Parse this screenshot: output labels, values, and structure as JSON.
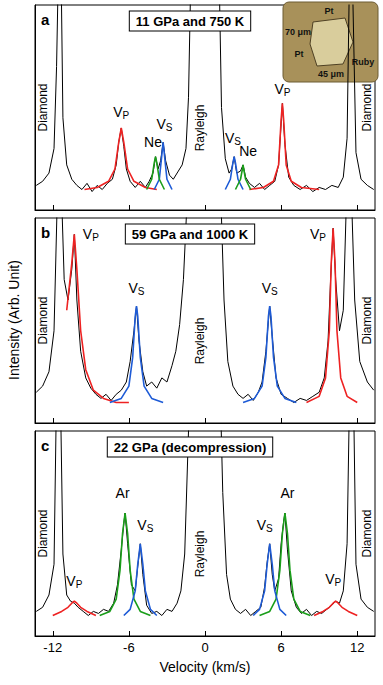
{
  "chart_data": {
    "type": "line",
    "xlabel": "Velocity (km/s)",
    "ylabel": "Intensity (Arb. Unit)",
    "xlim": [
      -13.4,
      13.4
    ],
    "xticks": [
      -12,
      -6,
      0,
      6,
      12
    ],
    "ylim": [
      0,
      100
    ],
    "inset": {
      "labels": [
        "Pt",
        "70 μm",
        "Pt",
        "45 μm",
        "Ruby"
      ]
    },
    "panels": [
      {
        "label": "a",
        "title": "11 GPa and 750 K",
        "tick_labels": false,
        "series": [
          {
            "color": "#000000",
            "x": [
              -13.3,
              -12.8,
              -12.3,
              -11.9,
              -11.7,
              -11.55,
              -11.35,
              -11.2,
              -10.9,
              -10.5,
              -10.1,
              -9.7,
              -9.3,
              -8.9,
              -8.5,
              -8.1,
              -7.7,
              -7.3,
              -7.0,
              -6.8,
              -6.6,
              -6.4,
              -6.2,
              -5.9,
              -5.5,
              -5.1,
              -4.7,
              -4.4,
              -4.1,
              -3.9,
              -3.7,
              -3.5,
              -3.3,
              -3.1,
              -2.8,
              -2.5,
              -2.1,
              -1.8,
              -1.5,
              -1.3,
              -1.1,
              0,
              1.1,
              1.3,
              1.6,
              1.9,
              2.1,
              2.3,
              2.5,
              2.8,
              3.0,
              3.2,
              3.5,
              3.9,
              4.3,
              4.7,
              5.1,
              5.5,
              5.8,
              6.0,
              6.1,
              6.3,
              6.6,
              7.0,
              7.5,
              8.0,
              8.5,
              9.0,
              9.5,
              10.0,
              10.5,
              10.9,
              11.2,
              11.4,
              11.6,
              11.9,
              12.3,
              12.8,
              13.3
            ],
            "values": [
              12,
              14,
              18,
              30,
              70,
              120,
              120,
              45,
              22,
              15,
              12,
              10,
              13,
              9,
              12,
              10,
              13,
              15,
              22,
              33,
              40,
              31,
              20,
              14,
              11,
              14,
              11,
              14,
              18,
              26,
              20,
              24,
              33,
              24,
              17,
              15,
              19,
              22,
              30,
              55,
              120,
              null,
              120,
              50,
              25,
              18,
              20,
              26,
              18,
              19,
              22,
              16,
              13,
              11,
              13,
              10,
              12,
              14,
              22,
              42,
              52,
              32,
              16,
              12,
              10,
              12,
              9,
              11,
              10,
              12,
              11,
              16,
              35,
              120,
              120,
              28,
              15,
              12,
              10
            ]
          },
          {
            "color": "#ee2222",
            "x": [
              -9.5,
              -8.5,
              -7.6,
              -7.1,
              -6.8,
              -6.6,
              -6.4,
              -6.1,
              -5.6,
              -4.7,
              -3.8,
              0,
              3.5,
              4.6,
              5.4,
              5.8,
              6.0,
              6.1,
              6.2,
              6.4,
              6.8,
              7.6,
              9.0
            ],
            "values": [
              10,
              11,
              14,
              20,
              33,
              40,
              33,
              20,
              14,
              11,
              10,
              null,
              10,
              11,
              14,
              22,
              44,
              52,
              44,
              22,
              14,
              11,
              10
            ]
          },
          {
            "color": "#1e5bd6",
            "x": [
              -4.0,
              -3.6,
              -3.4,
              -3.3,
              -3.2,
              -3.0,
              -2.6,
              0,
              1.6,
              2.0,
              2.2,
              2.3,
              2.4,
              2.6,
              3.0
            ],
            "values": [
              10,
              15,
              27,
              33,
              27,
              15,
              10,
              null,
              10,
              15,
              23,
              26,
              23,
              15,
              10
            ]
          },
          {
            "color": "#1a9e1a",
            "x": [
              -4.6,
              -4.2,
              -4.0,
              -3.9,
              -3.8,
              -3.6,
              -3.2,
              0,
              2.4,
              2.8,
              2.95,
              3.0,
              3.05,
              3.2,
              3.6
            ],
            "values": [
              10,
              15,
              23,
              26,
              23,
              15,
              10,
              null,
              10,
              15,
              20,
              22,
              20,
              15,
              10
            ]
          }
        ],
        "peak_labels": [
          {
            "text": "VP",
            "x": -6.6,
            "y": 48
          },
          {
            "text": "Ne",
            "x": -4.1,
            "y": 33
          },
          {
            "text": "VS",
            "x": -3.2,
            "y": 42
          },
          {
            "text": "VS",
            "x": 2.2,
            "y": 35
          },
          {
            "text": "Ne",
            "x": 3.4,
            "y": 29
          },
          {
            "text": "VP",
            "x": 6.1,
            "y": 59
          }
        ],
        "vertical_labels": [
          {
            "text": "Diamond",
            "x": -12.8,
            "y": 50
          },
          {
            "text": "Rayleigh",
            "x": -0.4,
            "y": 40
          },
          {
            "text": "Diamond",
            "x": 12.8,
            "y": 50
          }
        ]
      },
      {
        "label": "b",
        "title": "59 GPa and 1000 K",
        "tick_labels": false,
        "series": [
          {
            "color": "#000000",
            "x": [
              -13.3,
              -12.8,
              -12.3,
              -11.9,
              -11.6,
              -11.35,
              -11.1,
              -10.8,
              -10.5,
              -10.3,
              -10.1,
              -9.8,
              -9.4,
              -9.0,
              -8.6,
              -8.2,
              -7.8,
              -7.4,
              -7.0,
              -6.6,
              -6.2,
              -5.9,
              -5.6,
              -5.4,
              -5.2,
              -4.9,
              -4.6,
              -4.2,
              -3.8,
              -3.4,
              -3.0,
              -2.6,
              -2.3,
              -2.0,
              -1.7,
              -1.4,
              -1.2,
              0,
              1.2,
              1.5,
              1.8,
              2.2,
              2.6,
              3.0,
              3.4,
              3.8,
              4.2,
              4.5,
              4.8,
              5.0,
              5.1,
              5.3,
              5.6,
              6.0,
              6.5,
              7.0,
              7.5,
              8.0,
              8.5,
              9.0,
              9.4,
              9.7,
              9.9,
              10.1,
              10.3,
              10.6,
              10.9,
              11.2,
              11.5,
              11.8,
              12.2,
              12.8,
              13.3
            ],
            "values": [
              15,
              18,
              25,
              45,
              120,
              120,
              70,
              60,
              75,
              92,
              60,
              35,
              22,
              17,
              14,
              12,
              14,
              11,
              14,
              16,
              20,
              30,
              45,
              57,
              40,
              25,
              18,
              20,
              17,
              22,
              20,
              28,
              35,
              48,
              70,
              110,
              120,
              null,
              120,
              60,
              30,
              18,
              14,
              12,
              14,
              11,
              15,
              20,
              35,
              50,
              57,
              42,
              22,
              14,
              12,
              10,
              12,
              11,
              13,
              15,
              22,
              40,
              70,
              95,
              70,
              45,
              55,
              120,
              120,
              60,
              30,
              20,
              16
            ]
          },
          {
            "color": "#ee2222",
            "x": [
              -10.9,
              -10.5,
              -10.3,
              -10.1,
              -9.8,
              -9.4,
              -8.8,
              -8.0,
              -7.0,
              -6.0,
              0,
              8.0,
              9.0,
              9.5,
              9.8,
              9.95,
              10.1,
              10.25,
              10.4,
              10.7,
              11.2,
              12.0
            ],
            "values": [
              55,
              78,
              92,
              75,
              45,
              26,
              16,
              12,
              10,
              10,
              null,
              10,
              13,
              22,
              45,
              78,
              95,
              78,
              45,
              22,
              13,
              10
            ]
          },
          {
            "color": "#1e5bd6",
            "x": [
              -7.5,
              -6.6,
              -6.0,
              -5.7,
              -5.5,
              -5.4,
              -5.3,
              -5.1,
              -4.8,
              -4.2,
              -3.3,
              0,
              3.0,
              3.9,
              4.5,
              4.8,
              5.0,
              5.1,
              5.2,
              5.4,
              5.7,
              6.3,
              7.2
            ],
            "values": [
              10,
              12,
              18,
              32,
              52,
              57,
              52,
              32,
              18,
              12,
              10,
              null,
              10,
              12,
              18,
              32,
              52,
              57,
              52,
              32,
              18,
              12,
              10
            ]
          }
        ],
        "peak_labels": [
          {
            "text": "VP",
            "x": -9.0,
            "y": 92
          },
          {
            "text": "VS",
            "x": -5.4,
            "y": 66
          },
          {
            "text": "VS",
            "x": 5.1,
            "y": 66
          },
          {
            "text": "VP",
            "x": 8.9,
            "y": 92
          }
        ],
        "vertical_labels": [
          {
            "text": "Diamond",
            "x": -12.8,
            "y": 50
          },
          {
            "text": "Rayleigh",
            "x": -0.4,
            "y": 40
          },
          {
            "text": "Diamond",
            "x": 12.8,
            "y": 50
          }
        ]
      },
      {
        "label": "c",
        "title": "22 GPa (decompression)",
        "tick_labels": "x",
        "series": [
          {
            "color": "#000000",
            "x": [
              -13.3,
              -12.8,
              -12.3,
              -11.9,
              -11.7,
              -11.4,
              -11.2,
              -10.9,
              -10.6,
              -10.3,
              -10.0,
              -9.6,
              -9.2,
              -8.8,
              -8.4,
              -8.0,
              -7.6,
              -7.2,
              -6.9,
              -6.6,
              -6.4,
              -6.3,
              -6.1,
              -5.8,
              -5.5,
              -5.3,
              -5.1,
              -4.9,
              -4.6,
              -4.2,
              -3.8,
              -3.4,
              -3.0,
              -2.6,
              -2.2,
              -1.9,
              -1.6,
              -1.4,
              -1.2,
              0,
              1.2,
              1.4,
              1.7,
              2.0,
              2.4,
              2.8,
              3.2,
              3.6,
              4.0,
              4.4,
              4.7,
              4.9,
              5.1,
              5.3,
              5.5,
              5.8,
              6.0,
              6.2,
              6.3,
              6.5,
              6.8,
              7.2,
              7.6,
              8.0,
              8.4,
              8.8,
              9.2,
              9.6,
              10.0,
              10.3,
              10.6,
              10.9,
              11.2,
              11.4,
              11.7,
              11.9,
              12.3,
              12.8,
              13.3
            ],
            "values": [
              12,
              14,
              20,
              35,
              120,
              120,
              40,
              20,
              17,
              16,
              14,
              12,
              10,
              12,
              11,
              13,
              12,
              16,
              25,
              42,
              55,
              60,
              45,
              25,
              22,
              34,
              45,
              30,
              15,
              11,
              12,
              10,
              13,
              12,
              16,
              22,
              40,
              80,
              120,
              null,
              120,
              70,
              30,
              18,
              13,
              11,
              13,
              10,
              12,
              14,
              24,
              36,
              45,
              30,
              22,
              28,
              45,
              56,
              60,
              42,
              22,
              14,
              11,
              13,
              10,
              12,
              11,
              13,
              15,
              17,
              16,
              22,
              45,
              120,
              120,
              35,
              18,
              14,
              12
            ]
          },
          {
            "color": "#ee2222",
            "x": [
              -12.0,
              -11.3,
              -10.8,
              -10.5,
              -10.3,
              -10.1,
              -9.8,
              -9.3,
              -8.6,
              0,
              8.6,
              9.3,
              9.8,
              10.1,
              10.3,
              10.5,
              10.8,
              11.3,
              12.0
            ],
            "values": [
              10,
              12,
              14,
              16,
              17,
              16,
              14,
              12,
              10,
              null,
              10,
              12,
              14,
              16,
              17,
              16,
              14,
              12,
              10
            ]
          },
          {
            "color": "#1a9e1a",
            "x": [
              -8.3,
              -7.5,
              -7.0,
              -6.7,
              -6.5,
              -6.3,
              -6.1,
              -5.9,
              -5.6,
              -5.1,
              -4.3,
              0,
              4.3,
              5.1,
              5.6,
              5.9,
              6.1,
              6.3,
              6.5,
              6.7,
              7.0,
              7.5,
              8.3
            ],
            "values": [
              10,
              12,
              18,
              32,
              50,
              60,
              50,
              32,
              18,
              12,
              10,
              null,
              10,
              12,
              18,
              32,
              50,
              60,
              50,
              32,
              18,
              12,
              10
            ]
          },
          {
            "color": "#1e5bd6",
            "x": [
              -6.4,
              -5.9,
              -5.5,
              -5.3,
              -5.1,
              -4.9,
              -4.7,
              -4.3,
              -3.8,
              0,
              3.8,
              4.3,
              4.7,
              4.9,
              5.1,
              5.3,
              5.5,
              5.9,
              6.4
            ],
            "values": [
              10,
              13,
              22,
              35,
              45,
              35,
              22,
              13,
              10,
              null,
              10,
              13,
              22,
              35,
              45,
              35,
              22,
              13,
              10
            ]
          }
        ],
        "peak_labels": [
          {
            "text": "VP",
            "x": -10.3,
            "y": 27
          },
          {
            "text": "Ar",
            "x": -6.5,
            "y": 70
          },
          {
            "text": "VS",
            "x": -4.7,
            "y": 54
          },
          {
            "text": "VS",
            "x": 4.7,
            "y": 54
          },
          {
            "text": "Ar",
            "x": 6.5,
            "y": 70
          },
          {
            "text": "VP",
            "x": 10.1,
            "y": 28
          }
        ],
        "vertical_labels": [
          {
            "text": "Diamond",
            "x": -12.8,
            "y": 50
          },
          {
            "text": "Rayleigh",
            "x": -0.4,
            "y": 40
          },
          {
            "text": "Diamond",
            "x": 12.8,
            "y": 50
          }
        ]
      }
    ]
  }
}
